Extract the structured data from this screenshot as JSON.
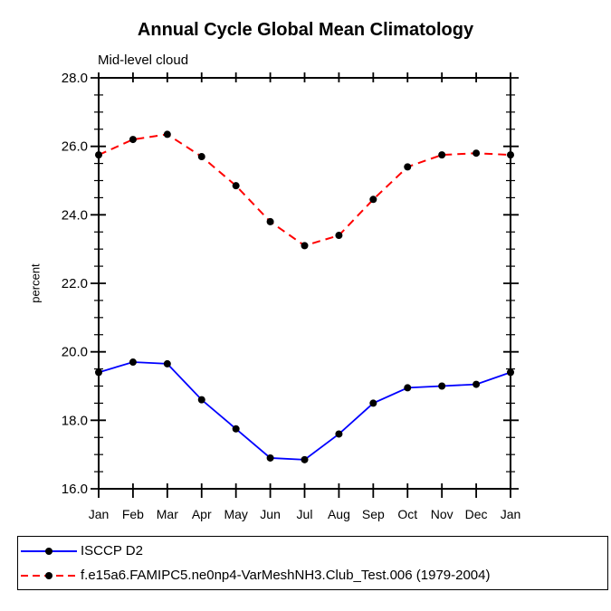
{
  "chart_data": {
    "type": "line",
    "title": "Annual Cycle Global Mean Climatology",
    "subtitle": "Mid-level cloud",
    "xlabel": "",
    "ylabel": "percent",
    "categories": [
      "Jan",
      "Feb",
      "Mar",
      "Apr",
      "May",
      "Jun",
      "Jul",
      "Aug",
      "Sep",
      "Oct",
      "Nov",
      "Dec",
      "Jan"
    ],
    "ylim": [
      16.0,
      28.0
    ],
    "yticks": [
      16.0,
      18.0,
      20.0,
      22.0,
      24.0,
      26.0,
      28.0
    ],
    "ytick_labels": [
      "16.0",
      "18.0",
      "20.0",
      "22.0",
      "24.0",
      "26.0",
      "28.0"
    ],
    "yminor_interval": 0.5,
    "grid": false,
    "legend_position": "bottom-left",
    "axis_color": "#000000",
    "series": [
      {
        "name": "ISCCP D2",
        "color": "#0000ff",
        "linestyle": "solid",
        "marker": "filled-circle",
        "marker_color": "#000000",
        "values": [
          19.4,
          19.7,
          19.65,
          18.6,
          17.75,
          16.9,
          16.85,
          17.6,
          18.5,
          18.95,
          19.0,
          19.05,
          19.4
        ]
      },
      {
        "name": "f.e15a6.FAMIPC5.ne0np4-VarMeshNH3.Club_Test.006 (1979-2004)",
        "color": "#ff0000",
        "linestyle": "dashed",
        "marker": "filled-circle",
        "marker_color": "#000000",
        "values": [
          25.75,
          26.2,
          26.35,
          25.7,
          24.85,
          23.8,
          23.1,
          23.4,
          24.45,
          25.4,
          25.75,
          25.8,
          25.75
        ]
      }
    ]
  }
}
